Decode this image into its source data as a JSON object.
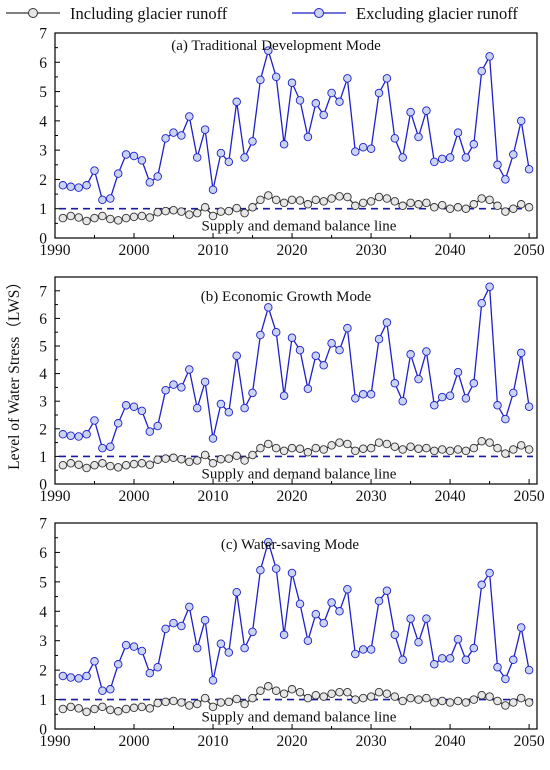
{
  "legend": {
    "items": [
      {
        "label": "Including glacier runoff",
        "color": "#333333",
        "marker": "open-circle-grey"
      },
      {
        "label": "Excluding glacier runoff",
        "color": "#1f1fcc",
        "marker": "open-circle-lightblue"
      }
    ]
  },
  "ylabel": "Level of Water Stress（LWS）",
  "colors": {
    "excluding_line": "#1f1fcc",
    "excluding_fill": "#c9d3f2",
    "including_line": "#333333",
    "including_fill": "#e6e6e6",
    "balance": "#1a1aa6"
  },
  "chart_data": [
    {
      "type": "line",
      "title": "(a) Traditional Development Mode",
      "balance_label": "Supply and demand balance line",
      "balance_value": 1.0,
      "xlim": [
        1990,
        2051
      ],
      "ylim": [
        0,
        7
      ],
      "xticks": [
        1990,
        2000,
        2010,
        2020,
        2030,
        2040,
        2050
      ],
      "yticks": [
        0,
        1,
        2,
        3,
        4,
        5,
        6,
        7
      ],
      "x": [
        1991,
        1992,
        1993,
        1994,
        1995,
        1996,
        1997,
        1998,
        1999,
        2000,
        2001,
        2002,
        2003,
        2004,
        2005,
        2006,
        2007,
        2008,
        2009,
        2010,
        2011,
        2012,
        2013,
        2014,
        2015,
        2016,
        2017,
        2018,
        2019,
        2020,
        2021,
        2022,
        2023,
        2024,
        2025,
        2026,
        2027,
        2028,
        2029,
        2030,
        2031,
        2032,
        2033,
        2034,
        2035,
        2036,
        2037,
        2038,
        2039,
        2040,
        2041,
        2042,
        2043,
        2044,
        2045,
        2046,
        2047,
        2048,
        2049,
        2050
      ],
      "series": [
        {
          "name": "Including glacier runoff",
          "values": [
            0.68,
            0.75,
            0.7,
            0.58,
            0.68,
            0.75,
            0.65,
            0.6,
            0.68,
            0.72,
            0.75,
            0.7,
            0.88,
            0.92,
            0.95,
            0.9,
            0.8,
            0.85,
            1.05,
            0.75,
            0.9,
            0.92,
            1.02,
            0.85,
            1.05,
            1.3,
            1.45,
            1.3,
            1.2,
            1.3,
            1.28,
            1.15,
            1.3,
            1.25,
            1.35,
            1.42,
            1.4,
            1.1,
            1.2,
            1.25,
            1.4,
            1.35,
            1.25,
            1.1,
            1.2,
            1.15,
            1.2,
            1.05,
            1.12,
            1.0,
            1.05,
            1.0,
            1.15,
            1.35,
            1.3,
            1.1,
            0.9,
            1.0,
            1.15,
            1.05
          ]
        },
        {
          "name": "Excluding glacier runoff",
          "values": [
            1.8,
            1.75,
            1.72,
            1.8,
            2.3,
            1.3,
            1.35,
            2.2,
            2.85,
            2.8,
            2.65,
            1.9,
            2.1,
            3.4,
            3.6,
            3.5,
            4.15,
            2.75,
            3.7,
            1.65,
            2.9,
            2.6,
            4.65,
            2.75,
            3.3,
            5.4,
            6.4,
            5.5,
            3.2,
            5.3,
            4.7,
            3.45,
            4.6,
            4.2,
            4.95,
            4.65,
            5.45,
            2.95,
            3.1,
            3.05,
            4.95,
            5.45,
            3.4,
            2.75,
            4.3,
            3.45,
            4.35,
            2.6,
            2.7,
            2.75,
            3.6,
            2.75,
            3.2,
            5.7,
            6.2,
            2.5,
            2.0,
            2.85,
            4.0,
            2.35
          ]
        }
      ]
    },
    {
      "type": "line",
      "title": "(b)  Economic Growth Mode",
      "balance_label": "Supply and demand balance line",
      "balance_value": 1.0,
      "xlim": [
        1990,
        2051
      ],
      "ylim": [
        0,
        7.5
      ],
      "xticks": [
        1990,
        2000,
        2010,
        2020,
        2030,
        2040,
        2050
      ],
      "yticks": [
        0,
        1,
        2,
        3,
        4,
        5,
        6,
        7
      ],
      "x": [
        1991,
        1992,
        1993,
        1994,
        1995,
        1996,
        1997,
        1998,
        1999,
        2000,
        2001,
        2002,
        2003,
        2004,
        2005,
        2006,
        2007,
        2008,
        2009,
        2010,
        2011,
        2012,
        2013,
        2014,
        2015,
        2016,
        2017,
        2018,
        2019,
        2020,
        2021,
        2022,
        2023,
        2024,
        2025,
        2026,
        2027,
        2028,
        2029,
        2030,
        2031,
        2032,
        2033,
        2034,
        2035,
        2036,
        2037,
        2038,
        2039,
        2040,
        2041,
        2042,
        2043,
        2044,
        2045,
        2046,
        2047,
        2048,
        2049,
        2050
      ],
      "series": [
        {
          "name": "Including glacier runoff",
          "values": [
            0.68,
            0.75,
            0.7,
            0.58,
            0.68,
            0.75,
            0.65,
            0.6,
            0.68,
            0.72,
            0.75,
            0.7,
            0.88,
            0.92,
            0.95,
            0.9,
            0.8,
            0.85,
            1.05,
            0.75,
            0.9,
            0.92,
            1.02,
            0.85,
            1.05,
            1.3,
            1.45,
            1.3,
            1.2,
            1.3,
            1.28,
            1.15,
            1.3,
            1.25,
            1.4,
            1.5,
            1.45,
            1.2,
            1.28,
            1.3,
            1.5,
            1.45,
            1.35,
            1.25,
            1.35,
            1.28,
            1.3,
            1.2,
            1.25,
            1.2,
            1.25,
            1.2,
            1.3,
            1.55,
            1.5,
            1.3,
            1.1,
            1.25,
            1.4,
            1.25
          ]
        },
        {
          "name": "Excluding glacier runoff",
          "values": [
            1.8,
            1.75,
            1.72,
            1.8,
            2.3,
            1.3,
            1.35,
            2.2,
            2.85,
            2.8,
            2.65,
            1.9,
            2.1,
            3.4,
            3.6,
            3.5,
            4.15,
            2.75,
            3.7,
            1.65,
            2.9,
            2.6,
            4.65,
            2.75,
            3.3,
            5.4,
            6.4,
            5.5,
            3.2,
            5.3,
            4.85,
            3.45,
            4.65,
            4.3,
            5.1,
            4.85,
            5.65,
            3.1,
            3.25,
            3.25,
            5.25,
            5.85,
            3.65,
            3.0,
            4.7,
            3.8,
            4.8,
            2.85,
            3.15,
            3.2,
            4.05,
            3.1,
            3.65,
            6.55,
            7.15,
            2.85,
            2.35,
            3.3,
            4.75,
            2.8
          ]
        }
      ]
    },
    {
      "type": "line",
      "title": "(c) Water-saving Mode",
      "balance_label": "Supply and demand balance line",
      "balance_value": 1.0,
      "xlim": [
        1990,
        2051
      ],
      "ylim": [
        0,
        7
      ],
      "xticks": [
        1990,
        2000,
        2010,
        2020,
        2030,
        2040,
        2050
      ],
      "yticks": [
        0,
        1,
        2,
        3,
        4,
        5,
        6,
        7
      ],
      "x": [
        1991,
        1992,
        1993,
        1994,
        1995,
        1996,
        1997,
        1998,
        1999,
        2000,
        2001,
        2002,
        2003,
        2004,
        2005,
        2006,
        2007,
        2008,
        2009,
        2010,
        2011,
        2012,
        2013,
        2014,
        2015,
        2016,
        2017,
        2018,
        2019,
        2020,
        2021,
        2022,
        2023,
        2024,
        2025,
        2026,
        2027,
        2028,
        2029,
        2030,
        2031,
        2032,
        2033,
        2034,
        2035,
        2036,
        2037,
        2038,
        2039,
        2040,
        2041,
        2042,
        2043,
        2044,
        2045,
        2046,
        2047,
        2048,
        2049,
        2050
      ],
      "series": [
        {
          "name": "Including glacier runoff",
          "values": [
            0.68,
            0.75,
            0.7,
            0.58,
            0.68,
            0.75,
            0.65,
            0.6,
            0.68,
            0.72,
            0.75,
            0.7,
            0.88,
            0.92,
            0.95,
            0.9,
            0.8,
            0.85,
            1.05,
            0.75,
            0.9,
            0.92,
            1.02,
            0.85,
            1.05,
            1.3,
            1.45,
            1.3,
            1.2,
            1.35,
            1.25,
            1.05,
            1.15,
            1.1,
            1.2,
            1.25,
            1.25,
            1.0,
            1.05,
            1.1,
            1.25,
            1.2,
            1.1,
            0.95,
            1.05,
            1.0,
            1.05,
            0.9,
            0.95,
            0.9,
            0.95,
            0.9,
            1.0,
            1.15,
            1.1,
            0.95,
            0.8,
            0.9,
            1.05,
            0.9
          ]
        },
        {
          "name": "Excluding glacier runoff",
          "values": [
            1.8,
            1.75,
            1.72,
            1.8,
            2.3,
            1.3,
            1.35,
            2.2,
            2.85,
            2.8,
            2.65,
            1.9,
            2.1,
            3.4,
            3.6,
            3.5,
            4.15,
            2.75,
            3.7,
            1.65,
            2.9,
            2.6,
            4.65,
            2.75,
            3.3,
            5.4,
            6.35,
            5.45,
            3.2,
            5.3,
            4.25,
            3.0,
            3.9,
            3.6,
            4.3,
            4.0,
            4.75,
            2.55,
            2.7,
            2.7,
            4.35,
            4.7,
            3.2,
            2.35,
            3.75,
            2.95,
            3.75,
            2.2,
            2.4,
            2.4,
            3.05,
            2.35,
            2.75,
            4.9,
            5.3,
            2.1,
            1.7,
            2.35,
            3.45,
            2.0
          ]
        }
      ]
    }
  ]
}
